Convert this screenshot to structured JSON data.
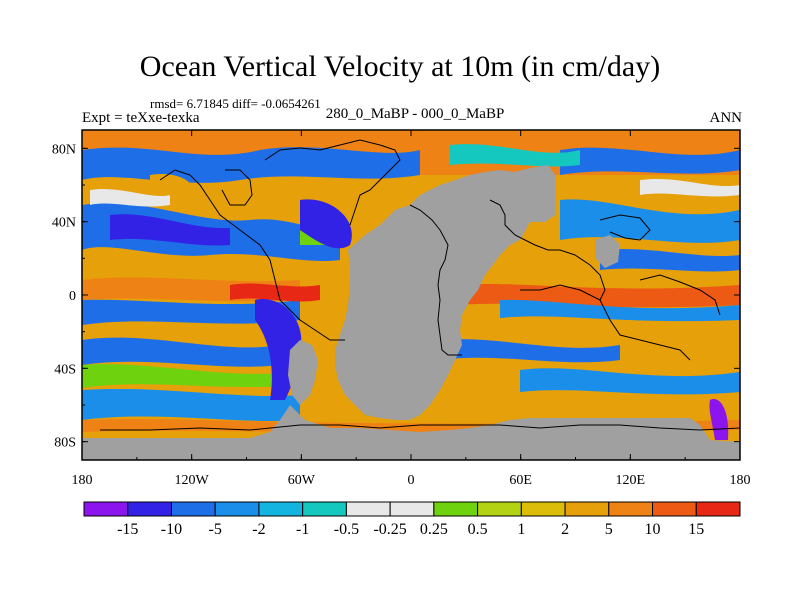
{
  "title": "Ocean Vertical Velocity at 10m (in cm/day)",
  "stats": "rmsd= 6.71845 diff= -0.0654261",
  "expt": "Expt = teXxe-texka",
  "case": "280_0_MaBP - 000_0_MaBP",
  "season": "ANN",
  "x_ticks": [
    "180",
    "120W",
    "60W",
    "0",
    "60E",
    "120E",
    "180"
  ],
  "y_ticks": [
    "80N",
    "40N",
    "0",
    "40S",
    "80S"
  ],
  "colorbar": {
    "labels": [
      "-15",
      "-10",
      "-5",
      "-2",
      "-1",
      "-0.5",
      "-0.25",
      "0.25",
      "0.5",
      "1",
      "2",
      "5",
      "10",
      "15"
    ],
    "colors": [
      "#8c14ec",
      "#3222e6",
      "#1e6ee8",
      "#1a8ee8",
      "#14b4e0",
      "#14c8c0",
      "#e8e8e8",
      "#6ed20e",
      "#b4d214",
      "#dcbe0a",
      "#e6a00a",
      "#ee8214",
      "#ec5a14",
      "#e62814"
    ]
  },
  "land_color": "#a0a0a0"
}
